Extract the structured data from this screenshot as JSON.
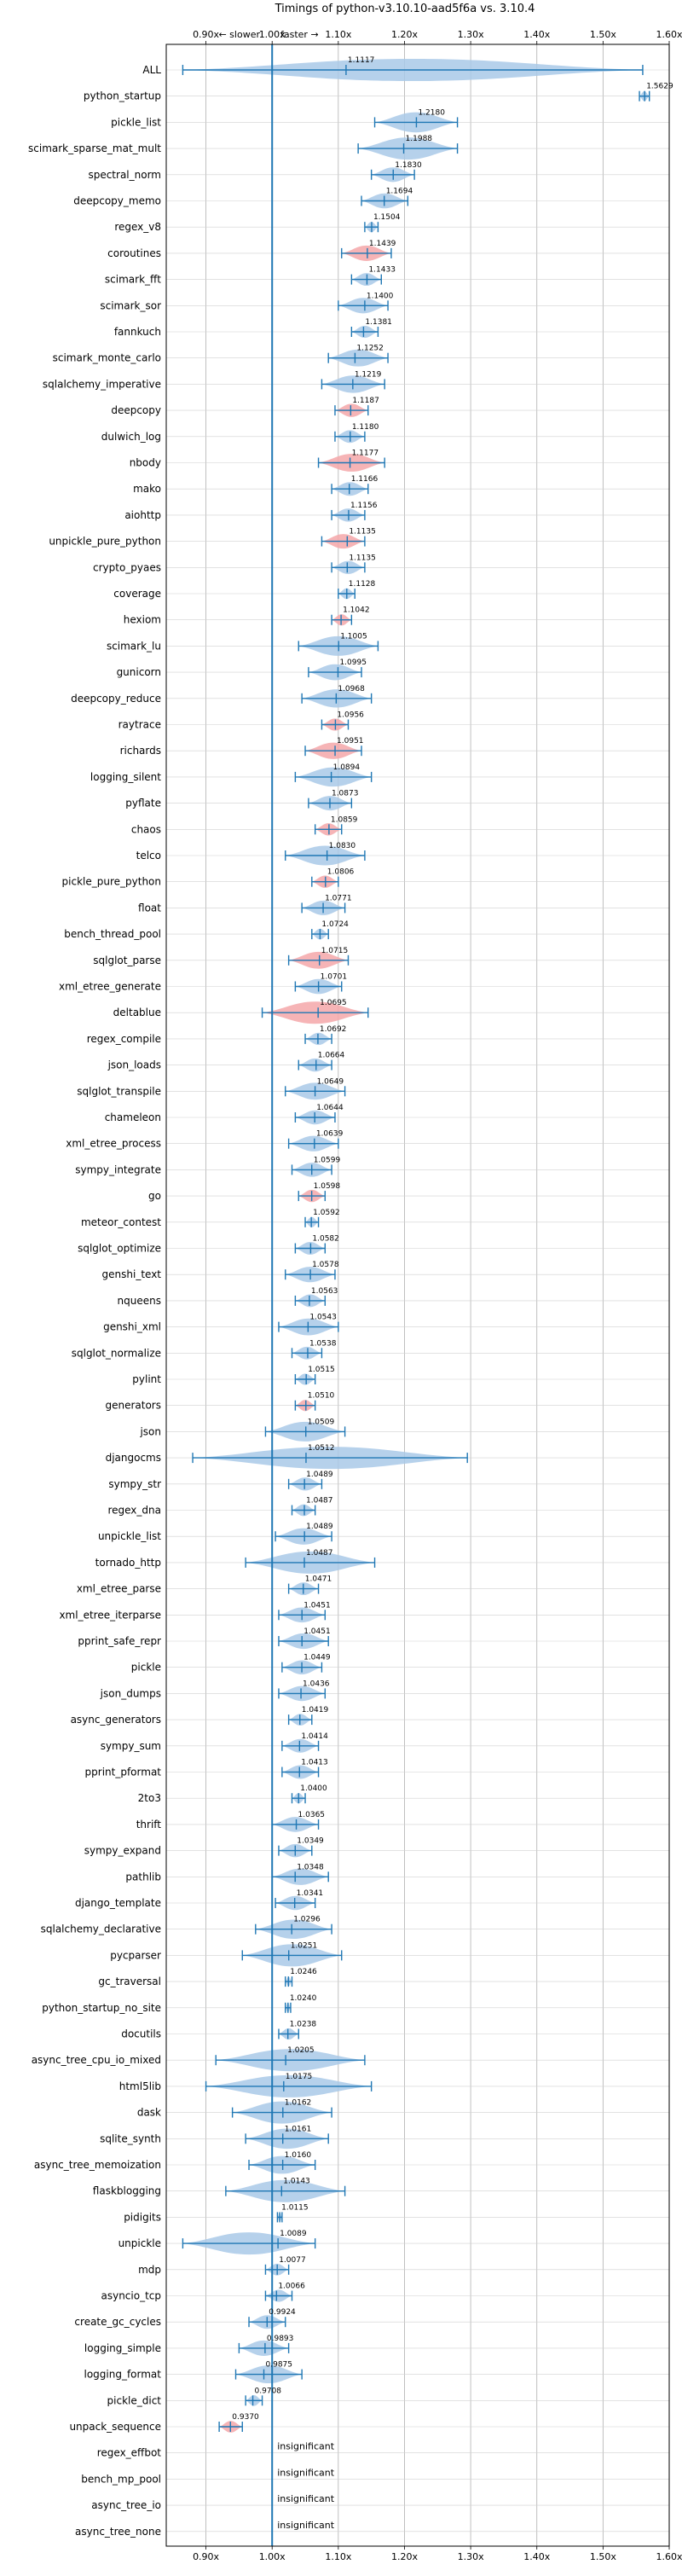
{
  "chart_data": {
    "type": "violin",
    "title": "Timings of python-v3.10.10-aad5f6a vs. 3.10.4",
    "direction_labels": {
      "slower": "← slower",
      "faster": "faster →"
    },
    "xticks": [
      0.9,
      1.0,
      1.1,
      1.2,
      1.3,
      1.4,
      1.5,
      1.6
    ],
    "xtick_labels": [
      "0.90x",
      "1.00x",
      "1.10x",
      "1.20x",
      "1.30x",
      "1.40x",
      "1.50x",
      "1.60x"
    ],
    "xlim": [
      0.84,
      1.6
    ],
    "reference_line": 1.0,
    "grid": true,
    "colors": {
      "line": "#1f77b4",
      "violin": "#a9c9e8",
      "violin_slow": "#f4a7a9",
      "grid": "#b0b0b0"
    },
    "benchmarks": [
      {
        "name": "ALL",
        "value": 1.1117,
        "label": "1.1117",
        "min": 0.865,
        "max": 1.56
      },
      {
        "name": "python_startup",
        "value": 1.5629,
        "label": "1.5629",
        "min": 1.555,
        "max": 1.57
      },
      {
        "name": "pickle_list",
        "value": 1.218,
        "label": "1.2180",
        "min": 1.155,
        "max": 1.28
      },
      {
        "name": "scimark_sparse_mat_mult",
        "value": 1.1988,
        "label": "1.1988",
        "min": 1.13,
        "max": 1.28
      },
      {
        "name": "spectral_norm",
        "value": 1.183,
        "label": "1.1830",
        "min": 1.15,
        "max": 1.215
      },
      {
        "name": "deepcopy_memo",
        "value": 1.1694,
        "label": "1.1694",
        "min": 1.135,
        "max": 1.205
      },
      {
        "name": "regex_v8",
        "value": 1.1504,
        "label": "1.1504",
        "min": 1.14,
        "max": 1.16
      },
      {
        "name": "coroutines",
        "value": 1.1439,
        "label": "1.1439",
        "min": 1.105,
        "max": 1.18,
        "slower": true
      },
      {
        "name": "scimark_fft",
        "value": 1.1433,
        "label": "1.1433",
        "min": 1.12,
        "max": 1.165
      },
      {
        "name": "scimark_sor",
        "value": 1.14,
        "label": "1.1400",
        "min": 1.1,
        "max": 1.175
      },
      {
        "name": "fannkuch",
        "value": 1.1381,
        "label": "1.1381",
        "min": 1.12,
        "max": 1.16
      },
      {
        "name": "scimark_monte_carlo",
        "value": 1.1252,
        "label": "1.1252",
        "min": 1.085,
        "max": 1.175
      },
      {
        "name": "sqlalchemy_imperative",
        "value": 1.1219,
        "label": "1.1219",
        "min": 1.075,
        "max": 1.17
      },
      {
        "name": "deepcopy",
        "value": 1.1187,
        "label": "1.1187",
        "min": 1.095,
        "max": 1.145,
        "slower": true
      },
      {
        "name": "dulwich_log",
        "value": 1.118,
        "label": "1.1180",
        "min": 1.095,
        "max": 1.14
      },
      {
        "name": "nbody",
        "value": 1.1177,
        "label": "1.1177",
        "min": 1.07,
        "max": 1.17,
        "slower": true
      },
      {
        "name": "mako",
        "value": 1.1166,
        "label": "1.1166",
        "min": 1.09,
        "max": 1.145
      },
      {
        "name": "aiohttp",
        "value": 1.1156,
        "label": "1.1156",
        "min": 1.09,
        "max": 1.14
      },
      {
        "name": "unpickle_pure_python",
        "value": 1.1135,
        "label": "1.1135",
        "min": 1.075,
        "max": 1.14,
        "slower": true
      },
      {
        "name": "crypto_pyaes",
        "value": 1.1135,
        "label": "1.1135",
        "min": 1.09,
        "max": 1.14
      },
      {
        "name": "coverage",
        "value": 1.1128,
        "label": "1.1128",
        "min": 1.1,
        "max": 1.125
      },
      {
        "name": "hexiom",
        "value": 1.1042,
        "label": "1.1042",
        "min": 1.09,
        "max": 1.12,
        "slower": true
      },
      {
        "name": "scimark_lu",
        "value": 1.1005,
        "label": "1.1005",
        "min": 1.04,
        "max": 1.16
      },
      {
        "name": "gunicorn",
        "value": 1.0995,
        "label": "1.0995",
        "min": 1.055,
        "max": 1.135
      },
      {
        "name": "deepcopy_reduce",
        "value": 1.0968,
        "label": "1.0968",
        "min": 1.045,
        "max": 1.15
      },
      {
        "name": "raytrace",
        "value": 1.0956,
        "label": "1.0956",
        "min": 1.075,
        "max": 1.115,
        "slower": true
      },
      {
        "name": "richards",
        "value": 1.0951,
        "label": "1.0951",
        "min": 1.05,
        "max": 1.135,
        "slower": true
      },
      {
        "name": "logging_silent",
        "value": 1.0894,
        "label": "1.0894",
        "min": 1.035,
        "max": 1.15
      },
      {
        "name": "pyflate",
        "value": 1.0873,
        "label": "1.0873",
        "min": 1.055,
        "max": 1.12
      },
      {
        "name": "chaos",
        "value": 1.0859,
        "label": "1.0859",
        "min": 1.065,
        "max": 1.105,
        "slower": true
      },
      {
        "name": "telco",
        "value": 1.083,
        "label": "1.0830",
        "min": 1.02,
        "max": 1.14
      },
      {
        "name": "pickle_pure_python",
        "value": 1.0806,
        "label": "1.0806",
        "min": 1.06,
        "max": 1.1,
        "slower": true
      },
      {
        "name": "float",
        "value": 1.0771,
        "label": "1.0771",
        "min": 1.045,
        "max": 1.11
      },
      {
        "name": "bench_thread_pool",
        "value": 1.0724,
        "label": "1.0724",
        "min": 1.06,
        "max": 1.085
      },
      {
        "name": "sqlglot_parse",
        "value": 1.0715,
        "label": "1.0715",
        "min": 1.025,
        "max": 1.115,
        "slower": true
      },
      {
        "name": "xml_etree_generate",
        "value": 1.0701,
        "label": "1.0701",
        "min": 1.035,
        "max": 1.105
      },
      {
        "name": "deltablue",
        "value": 1.0695,
        "label": "1.0695",
        "min": 0.985,
        "max": 1.145,
        "slower": true
      },
      {
        "name": "regex_compile",
        "value": 1.0692,
        "label": "1.0692",
        "min": 1.05,
        "max": 1.09
      },
      {
        "name": "json_loads",
        "value": 1.0664,
        "label": "1.0664",
        "min": 1.04,
        "max": 1.09
      },
      {
        "name": "sqlglot_transpile",
        "value": 1.0649,
        "label": "1.0649",
        "min": 1.02,
        "max": 1.11
      },
      {
        "name": "chameleon",
        "value": 1.0644,
        "label": "1.0644",
        "min": 1.035,
        "max": 1.095
      },
      {
        "name": "xml_etree_process",
        "value": 1.0639,
        "label": "1.0639",
        "min": 1.025,
        "max": 1.1
      },
      {
        "name": "sympy_integrate",
        "value": 1.0599,
        "label": "1.0599",
        "min": 1.03,
        "max": 1.09
      },
      {
        "name": "go",
        "value": 1.0598,
        "label": "1.0598",
        "min": 1.04,
        "max": 1.08,
        "slower": true
      },
      {
        "name": "meteor_contest",
        "value": 1.0592,
        "label": "1.0592",
        "min": 1.05,
        "max": 1.07
      },
      {
        "name": "sqlglot_optimize",
        "value": 1.0582,
        "label": "1.0582",
        "min": 1.035,
        "max": 1.08
      },
      {
        "name": "genshi_text",
        "value": 1.0578,
        "label": "1.0578",
        "min": 1.02,
        "max": 1.095
      },
      {
        "name": "nqueens",
        "value": 1.0563,
        "label": "1.0563",
        "min": 1.035,
        "max": 1.08
      },
      {
        "name": "genshi_xml",
        "value": 1.0543,
        "label": "1.0543",
        "min": 1.01,
        "max": 1.1
      },
      {
        "name": "sqlglot_normalize",
        "value": 1.0538,
        "label": "1.0538",
        "min": 1.03,
        "max": 1.075
      },
      {
        "name": "pylint",
        "value": 1.0515,
        "label": "1.0515",
        "min": 1.035,
        "max": 1.065
      },
      {
        "name": "generators",
        "value": 1.051,
        "label": "1.0510",
        "min": 1.035,
        "max": 1.065,
        "slower": true
      },
      {
        "name": "json",
        "value": 1.0509,
        "label": "1.0509",
        "min": 0.99,
        "max": 1.11
      },
      {
        "name": "djangocms",
        "value": 1.0512,
        "label": "1.0512",
        "min": 0.88,
        "max": 1.295
      },
      {
        "name": "sympy_str",
        "value": 1.0489,
        "label": "1.0489",
        "min": 1.025,
        "max": 1.075
      },
      {
        "name": "regex_dna",
        "value": 1.0487,
        "label": "1.0487",
        "min": 1.03,
        "max": 1.065
      },
      {
        "name": "unpickle_list",
        "value": 1.0489,
        "label": "1.0489",
        "min": 1.005,
        "max": 1.09
      },
      {
        "name": "tornado_http",
        "value": 1.0487,
        "label": "1.0487",
        "min": 0.96,
        "max": 1.155
      },
      {
        "name": "xml_etree_parse",
        "value": 1.0471,
        "label": "1.0471",
        "min": 1.025,
        "max": 1.07
      },
      {
        "name": "xml_etree_iterparse",
        "value": 1.0451,
        "label": "1.0451",
        "min": 1.01,
        "max": 1.08
      },
      {
        "name": "pprint_safe_repr",
        "value": 1.0451,
        "label": "1.0451",
        "min": 1.01,
        "max": 1.085
      },
      {
        "name": "pickle",
        "value": 1.0449,
        "label": "1.0449",
        "min": 1.015,
        "max": 1.075
      },
      {
        "name": "json_dumps",
        "value": 1.0436,
        "label": "1.0436",
        "min": 1.01,
        "max": 1.08
      },
      {
        "name": "async_generators",
        "value": 1.0419,
        "label": "1.0419",
        "min": 1.025,
        "max": 1.06
      },
      {
        "name": "sympy_sum",
        "value": 1.0414,
        "label": "1.0414",
        "min": 1.015,
        "max": 1.07
      },
      {
        "name": "pprint_pformat",
        "value": 1.0413,
        "label": "1.0413",
        "min": 1.015,
        "max": 1.07
      },
      {
        "name": "2to3",
        "value": 1.04,
        "label": "1.0400",
        "min": 1.03,
        "max": 1.05
      },
      {
        "name": "thrift",
        "value": 1.0365,
        "label": "1.0365",
        "min": 1.0,
        "max": 1.07
      },
      {
        "name": "sympy_expand",
        "value": 1.0349,
        "label": "1.0349",
        "min": 1.01,
        "max": 1.06
      },
      {
        "name": "pathlib",
        "value": 1.0348,
        "label": "1.0348",
        "min": 1.0,
        "max": 1.085
      },
      {
        "name": "django_template",
        "value": 1.0341,
        "label": "1.0341",
        "min": 1.005,
        "max": 1.065
      },
      {
        "name": "sqlalchemy_declarative",
        "value": 1.0296,
        "label": "1.0296",
        "min": 0.975,
        "max": 1.09
      },
      {
        "name": "pycparser",
        "value": 1.0251,
        "label": "1.0251",
        "min": 0.955,
        "max": 1.105
      },
      {
        "name": "gc_traversal",
        "value": 1.0246,
        "label": "1.0246",
        "min": 1.02,
        "max": 1.03
      },
      {
        "name": "python_startup_no_site",
        "value": 1.024,
        "label": "1.0240",
        "min": 1.02,
        "max": 1.028
      },
      {
        "name": "docutils",
        "value": 1.0238,
        "label": "1.0238",
        "min": 1.01,
        "max": 1.04
      },
      {
        "name": "async_tree_cpu_io_mixed",
        "value": 1.0205,
        "label": "1.0205",
        "min": 0.915,
        "max": 1.14
      },
      {
        "name": "html5lib",
        "value": 1.0175,
        "label": "1.0175",
        "min": 0.9,
        "max": 1.15
      },
      {
        "name": "dask",
        "value": 1.0162,
        "label": "1.0162",
        "min": 0.94,
        "max": 1.09
      },
      {
        "name": "sqlite_synth",
        "value": 1.0161,
        "label": "1.0161",
        "min": 0.96,
        "max": 1.085
      },
      {
        "name": "async_tree_memoization",
        "value": 1.016,
        "label": "1.0160",
        "min": 0.965,
        "max": 1.065
      },
      {
        "name": "flaskblogging",
        "value": 1.0143,
        "label": "1.0143",
        "min": 0.93,
        "max": 1.11
      },
      {
        "name": "pidigits",
        "value": 1.0115,
        "label": "1.0115",
        "min": 1.008,
        "max": 1.015
      },
      {
        "name": "unpickle",
        "value": 1.0089,
        "label": "1.0089",
        "min": 0.865,
        "max": 1.065
      },
      {
        "name": "mdp",
        "value": 1.0077,
        "label": "1.0077",
        "min": 0.99,
        "max": 1.025
      },
      {
        "name": "asyncio_tcp",
        "value": 1.0066,
        "label": "1.0066",
        "min": 0.99,
        "max": 1.03
      },
      {
        "name": "create_gc_cycles",
        "value": 0.9924,
        "label": "0.9924",
        "min": 0.965,
        "max": 1.02
      },
      {
        "name": "logging_simple",
        "value": 0.9893,
        "label": "0.9893",
        "min": 0.95,
        "max": 1.025
      },
      {
        "name": "logging_format",
        "value": 0.9875,
        "label": "0.9875",
        "min": 0.945,
        "max": 1.045
      },
      {
        "name": "pickle_dict",
        "value": 0.9708,
        "label": "0.9708",
        "min": 0.96,
        "max": 0.985
      },
      {
        "name": "unpack_sequence",
        "value": 0.937,
        "label": "0.9370",
        "min": 0.92,
        "max": 0.955,
        "slower": true
      },
      {
        "name": "regex_effbot",
        "insignificant": true,
        "label": "insignificant"
      },
      {
        "name": "bench_mp_pool",
        "insignificant": true,
        "label": "insignificant"
      },
      {
        "name": "async_tree_io",
        "insignificant": true,
        "label": "insignificant"
      },
      {
        "name": "async_tree_none",
        "insignificant": true,
        "label": "insignificant"
      }
    ]
  }
}
